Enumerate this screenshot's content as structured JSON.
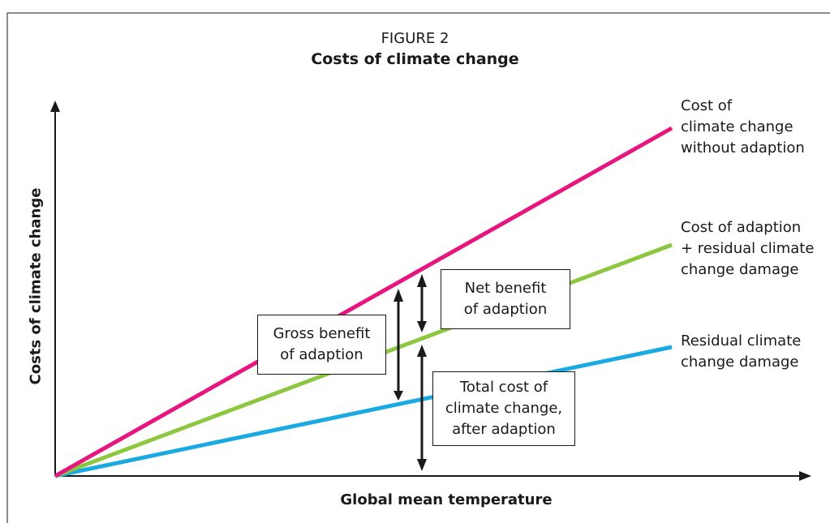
{
  "figure": {
    "number": "FIGURE 2",
    "title": "Costs of climate change"
  },
  "axes": {
    "x_label": "Global mean temperature",
    "y_label": "Costs of climate change"
  },
  "lines": [
    {
      "key": "without_adaption",
      "label": "Cost of\nclimate change\nwithout adaption",
      "color": "#e6157f"
    },
    {
      "key": "adaption_plus_residual",
      "label": "Cost of adaption\n+ residual climate\nchange damage",
      "color": "#8dc63f"
    },
    {
      "key": "residual",
      "label": "Residual climate\nchange damage",
      "color": "#1ba9e1"
    }
  ],
  "callouts": {
    "net_benefit": "Net benefit\nof adaption",
    "gross_benefit": "Gross benefit\nof adaption",
    "total_cost": "Total cost of\nclimate change,\nafter adaption"
  },
  "colors": {
    "axis": "#1a1a1a",
    "frame": "#1a1a1a"
  }
}
